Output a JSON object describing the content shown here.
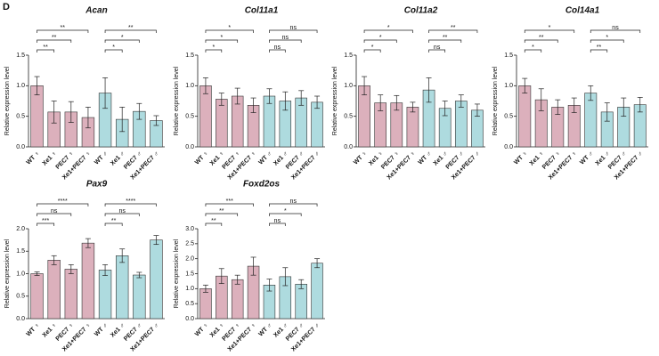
{
  "panel_label": "D",
  "chart_data": [
    {
      "type": "bar",
      "title": "Acan",
      "y_label": "Relative expression level",
      "categories": [
        "WT ♀",
        "Xe1 ♀",
        "PEC7 ♀",
        "Xe1+PEC7 ♀",
        "WT ♂",
        "Xe1 ♂",
        "PEC7 ♂",
        "Xe1+PEC7 ♂"
      ],
      "values": [
        1.0,
        0.57,
        0.57,
        0.48,
        0.88,
        0.45,
        0.58,
        0.43
      ],
      "errors": [
        0.15,
        0.18,
        0.17,
        0.17,
        0.25,
        0.2,
        0.13,
        0.08
      ],
      "colors": [
        "#dcb0bc",
        "#dcb0bc",
        "#dcb0bc",
        "#dcb0bc",
        "#aedbdf",
        "#aedbdf",
        "#aedbdf",
        "#aedbdf"
      ],
      "ylim": [
        0,
        1.5
      ],
      "yticks": [
        {
          "value": 0,
          "label": "0.0"
        },
        0.5,
        {
          "value": 1,
          "label": "1.0"
        },
        1.5
      ],
      "comparisons": [
        {
          "from": 0,
          "to": 1,
          "label": "**"
        },
        {
          "from": 0,
          "to": 2,
          "label": "**"
        },
        {
          "from": 0,
          "to": 3,
          "label": "**"
        },
        {
          "from": 4,
          "to": 5,
          "label": "*"
        },
        {
          "from": 4,
          "to": 6,
          "label": "*"
        },
        {
          "from": 4,
          "to": 7,
          "label": "**"
        }
      ]
    },
    {
      "type": "bar",
      "title": "Col11a1",
      "y_label": "Relative expression level",
      "categories": [
        "WT ♀",
        "Xe1 ♀",
        "PEC7 ♀",
        "Xe1+PEC7 ♀",
        "WT ♂",
        "Xe1 ♂",
        "PEC7 ♂",
        "Xe1+PEC7 ♂"
      ],
      "values": [
        1.0,
        0.78,
        0.83,
        0.68,
        0.83,
        0.75,
        0.8,
        0.73
      ],
      "errors": [
        0.13,
        0.1,
        0.13,
        0.12,
        0.12,
        0.15,
        0.12,
        0.1
      ],
      "colors": [
        "#dcb0bc",
        "#dcb0bc",
        "#dcb0bc",
        "#dcb0bc",
        "#aedbdf",
        "#aedbdf",
        "#aedbdf",
        "#aedbdf"
      ],
      "ylim": [
        0,
        1.5
      ],
      "yticks": [
        {
          "value": 0,
          "label": "0.0"
        },
        0.5,
        {
          "value": 1,
          "label": "1.0"
        },
        1.5
      ],
      "comparisons": [
        {
          "from": 0,
          "to": 1,
          "label": "*"
        },
        {
          "from": 0,
          "to": 2,
          "label": "*"
        },
        {
          "from": 0,
          "to": 3,
          "label": "*"
        },
        {
          "from": 4,
          "to": 5,
          "label": "ns"
        },
        {
          "from": 4,
          "to": 6,
          "label": "ns"
        },
        {
          "from": 4,
          "to": 7,
          "label": "ns"
        }
      ]
    },
    {
      "type": "bar",
      "title": "Col11a2",
      "y_label": "Relative expression level",
      "categories": [
        "WT ♀",
        "Xe1 ♀",
        "PEC7 ♀",
        "Xe1+PEC7 ♀",
        "WT ♂",
        "Xe1 ♂",
        "PEC7 ♂",
        "Xe1+PEC7 ♂"
      ],
      "values": [
        1.0,
        0.72,
        0.72,
        0.65,
        0.93,
        0.63,
        0.75,
        0.6
      ],
      "errors": [
        0.15,
        0.13,
        0.12,
        0.08,
        0.2,
        0.12,
        0.1,
        0.1
      ],
      "colors": [
        "#dcb0bc",
        "#dcb0bc",
        "#dcb0bc",
        "#dcb0bc",
        "#aedbdf",
        "#aedbdf",
        "#aedbdf",
        "#aedbdf"
      ],
      "ylim": [
        0,
        1.5
      ],
      "yticks": [
        {
          "value": 0,
          "label": "0.0"
        },
        0.5,
        {
          "value": 1,
          "label": "1.0"
        },
        1.5
      ],
      "comparisons": [
        {
          "from": 0,
          "to": 1,
          "label": "*"
        },
        {
          "from": 0,
          "to": 2,
          "label": "*"
        },
        {
          "from": 0,
          "to": 3,
          "label": "*"
        },
        {
          "from": 4,
          "to": 5,
          "label": "ns"
        },
        {
          "from": 4,
          "to": 6,
          "label": "**"
        },
        {
          "from": 4,
          "to": 7,
          "label": "**"
        }
      ]
    },
    {
      "type": "bar",
      "title": "Col14a1",
      "y_label": "Relative expression level",
      "categories": [
        "WT ♀",
        "Xe1 ♀",
        "PEC7 ♀",
        "Xe1+PEC7 ♀",
        "WT ♂",
        "Xe1 ♂",
        "PEC7 ♂",
        "Xe1+PEC7 ♂"
      ],
      "values": [
        1.0,
        0.77,
        0.65,
        0.68,
        0.88,
        0.57,
        0.65,
        0.69
      ],
      "errors": [
        0.12,
        0.18,
        0.12,
        0.12,
        0.12,
        0.15,
        0.15,
        0.12
      ],
      "colors": [
        "#dcb0bc",
        "#dcb0bc",
        "#dcb0bc",
        "#dcb0bc",
        "#aedbdf",
        "#aedbdf",
        "#aedbdf",
        "#aedbdf"
      ],
      "ylim": [
        0,
        1.5
      ],
      "yticks": [
        {
          "value": 0,
          "label": "0.0"
        },
        0.5,
        {
          "value": 1,
          "label": "1.0"
        },
        1.5
      ],
      "comparisons": [
        {
          "from": 0,
          "to": 1,
          "label": "*"
        },
        {
          "from": 0,
          "to": 2,
          "label": "**"
        },
        {
          "from": 0,
          "to": 3,
          "label": "*"
        },
        {
          "from": 4,
          "to": 5,
          "label": "**"
        },
        {
          "from": 4,
          "to": 6,
          "label": "*"
        },
        {
          "from": 4,
          "to": 7,
          "label": "ns"
        }
      ]
    },
    {
      "type": "bar",
      "title": "Pax9",
      "y_label": "Relative expression level",
      "categories": [
        "WT ♀",
        "Xe1 ♀",
        "PEC7 ♀",
        "Xe1+PEC7 ♀",
        "WT ♂",
        "Xe1 ♂",
        "PEC7 ♂",
        "Xe1+PEC7 ♂"
      ],
      "values": [
        1.0,
        1.3,
        1.1,
        1.68,
        1.08,
        1.4,
        0.97,
        1.75
      ],
      "errors": [
        0.04,
        0.1,
        0.1,
        0.1,
        0.12,
        0.15,
        0.06,
        0.1
      ],
      "colors": [
        "#dcb0bc",
        "#dcb0bc",
        "#dcb0bc",
        "#dcb0bc",
        "#aedbdf",
        "#aedbdf",
        "#aedbdf",
        "#aedbdf"
      ],
      "ylim": [
        0,
        2
      ],
      "yticks": [
        {
          "value": 0,
          "label": "0.0"
        },
        0.5,
        {
          "value": 1,
          "label": "1.0"
        },
        1.5,
        {
          "value": 2,
          "label": "2.0"
        }
      ],
      "comparisons": [
        {
          "from": 0,
          "to": 1,
          "label": "***"
        },
        {
          "from": 0,
          "to": 2,
          "label": "ns"
        },
        {
          "from": 0,
          "to": 3,
          "label": "****"
        },
        {
          "from": 4,
          "to": 5,
          "label": "**"
        },
        {
          "from": 4,
          "to": 6,
          "label": "ns"
        },
        {
          "from": 4,
          "to": 7,
          "label": "****"
        }
      ]
    },
    {
      "type": "bar",
      "title": "Foxd2os",
      "y_label": "Relative expression level",
      "categories": [
        "WT ♀",
        "Xe1 ♀",
        "PEC7 ♀",
        "Xe1+PEC7 ♀",
        "WT ♂",
        "Xe1 ♂",
        "PEC7 ♂",
        "Xe1+PEC7 ♂"
      ],
      "values": [
        1.0,
        1.42,
        1.3,
        1.75,
        1.12,
        1.4,
        1.15,
        1.85
      ],
      "errors": [
        0.12,
        0.25,
        0.15,
        0.3,
        0.2,
        0.3,
        0.15,
        0.15
      ],
      "colors": [
        "#dcb0bc",
        "#dcb0bc",
        "#dcb0bc",
        "#dcb0bc",
        "#aedbdf",
        "#aedbdf",
        "#aedbdf",
        "#aedbdf"
      ],
      "ylim": [
        0,
        3
      ],
      "yticks": [
        {
          "value": 0,
          "label": "0.0"
        },
        0.5,
        {
          "value": 1,
          "label": "1.0"
        },
        1.5,
        {
          "value": 2,
          "label": "2.0"
        },
        2.5,
        {
          "value": 3,
          "label": "3.0"
        }
      ],
      "comparisons": [
        {
          "from": 0,
          "to": 1,
          "label": "**"
        },
        {
          "from": 0,
          "to": 2,
          "label": "**"
        },
        {
          "from": 0,
          "to": 3,
          "label": "***"
        },
        {
          "from": 4,
          "to": 5,
          "label": "ns"
        },
        {
          "from": 4,
          "to": 6,
          "label": "*"
        },
        {
          "from": 4,
          "to": 7,
          "label": "ns"
        }
      ]
    }
  ]
}
